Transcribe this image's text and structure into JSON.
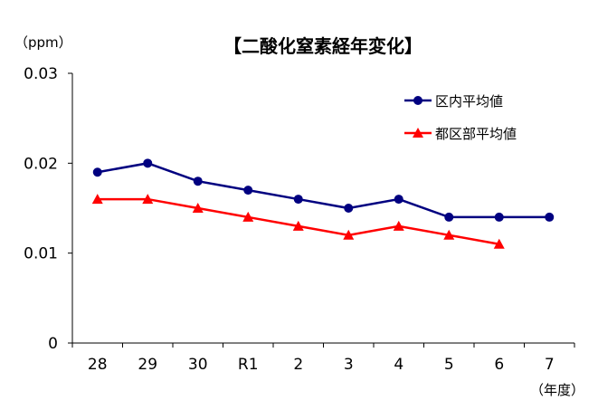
{
  "chart_data": {
    "type": "line",
    "title": "【二酸化窒素経年変化】",
    "y_unit_label": "（ppm）",
    "x_unit_label": "（年度）",
    "categories": [
      "28",
      "29",
      "30",
      "R1",
      "2",
      "3",
      "4",
      "5",
      "6",
      "7"
    ],
    "ylim": [
      0,
      0.03
    ],
    "yticks": [
      "0",
      "0.01",
      "0.02",
      "0.03"
    ],
    "grid": false,
    "legend_position": "top-right",
    "series": [
      {
        "name": "区内平均値",
        "color": "#000080",
        "marker": "circle",
        "values": [
          0.019,
          0.02,
          0.018,
          0.017,
          0.016,
          0.015,
          0.016,
          0.014,
          0.014,
          0.014
        ]
      },
      {
        "name": "都区部平均値",
        "color": "#ff0000",
        "marker": "triangle",
        "values": [
          0.016,
          0.016,
          0.015,
          0.014,
          0.013,
          0.012,
          0.013,
          0.012,
          0.011,
          null
        ]
      }
    ]
  }
}
